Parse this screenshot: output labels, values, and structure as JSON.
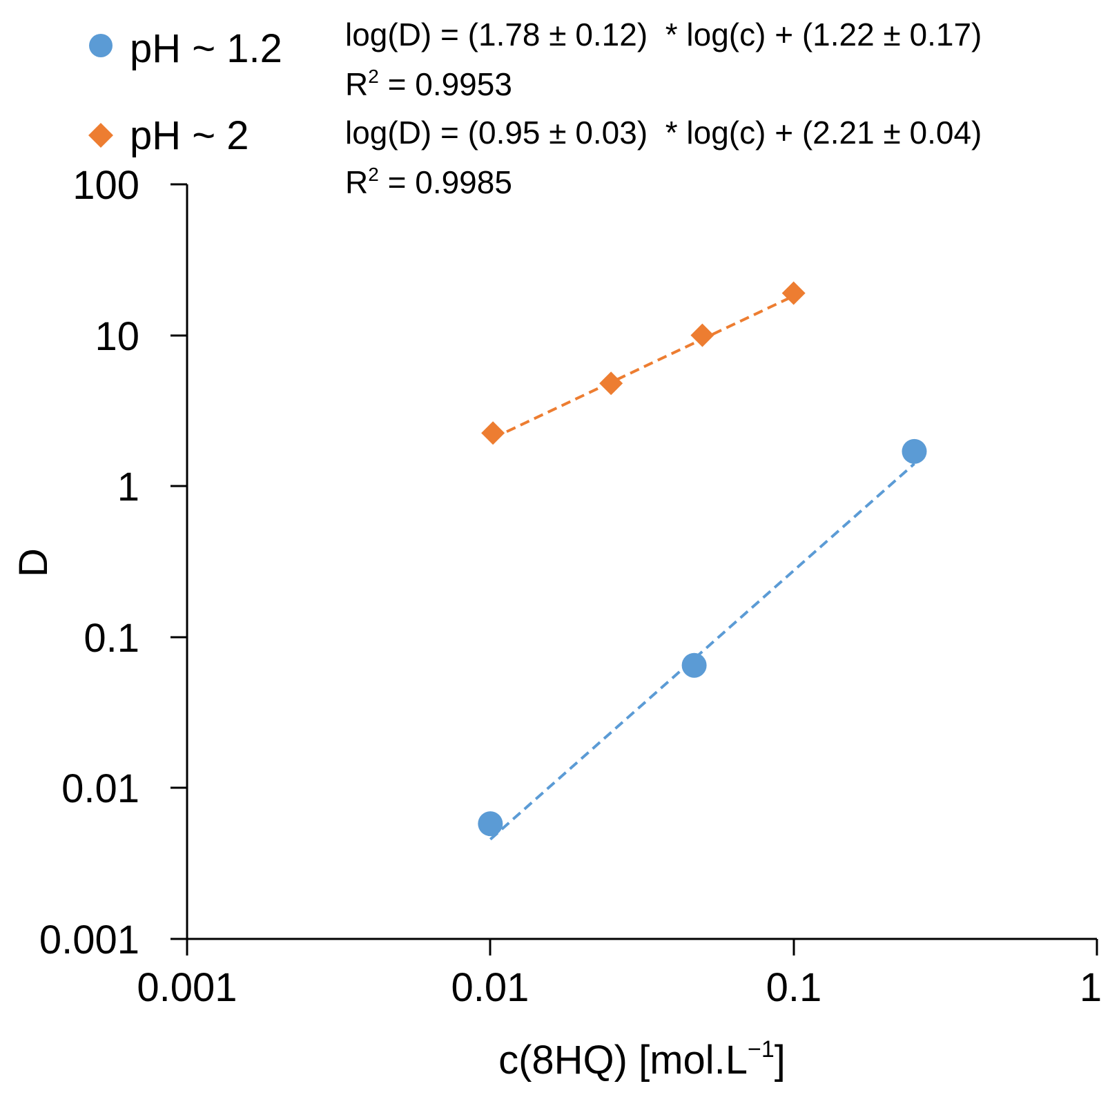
{
  "chart_data": {
    "type": "scatter",
    "x_scale": "log",
    "y_scale": "log",
    "xlim": [
      0.001,
      1
    ],
    "ylim": [
      0.001,
      100
    ],
    "x_ticks": [
      "0.001",
      "0.01",
      "0.1",
      "1"
    ],
    "y_ticks": [
      "100",
      "10",
      "1",
      "0.1",
      "0.01",
      "0.001"
    ],
    "x_tick_values": [
      0.001,
      0.01,
      0.1,
      1
    ],
    "y_tick_values": [
      100,
      10,
      1,
      0.1,
      0.01,
      0.001
    ],
    "xlabel": "c(8HQ) [mol.L",
    "xlabel_sup": "−1",
    "xlabel_end": "]",
    "ylabel": "D",
    "grid": false,
    "legend_position": "top-left",
    "series": [
      {
        "name": "pH ~ 1.2",
        "marker": "circle",
        "color": "#5b9bd5",
        "points": [
          {
            "x": 0.01,
            "y": 0.0058
          },
          {
            "x": 0.047,
            "y": 0.065
          },
          {
            "x": 0.25,
            "y": 1.7
          }
        ],
        "fit": {
          "type": "power",
          "slope": 1.78,
          "intercept": 1.22,
          "x_range": [
            0.01,
            0.25
          ],
          "equation": "log(D) = (1.78 ± 0.12)  * log(c) + (1.22 ± 0.17)",
          "r2_prefix": "R",
          "r2_sup": "2",
          "r2_value": " = 0.9953"
        }
      },
      {
        "name": "pH ~ 2",
        "marker": "diamond",
        "color": "#ed7d31",
        "points": [
          {
            "x": 0.0102,
            "y": 2.25
          },
          {
            "x": 0.025,
            "y": 4.8
          },
          {
            "x": 0.05,
            "y": 10.0
          },
          {
            "x": 0.1,
            "y": 19.0
          }
        ],
        "fit": {
          "type": "power",
          "slope": 0.95,
          "intercept": 2.21,
          "x_range": [
            0.0102,
            0.1
          ],
          "equation": "log(D) = (0.95 ± 0.03)  * log(c) + (2.21 ± 0.04)",
          "r2_prefix": "R",
          "r2_sup": "2",
          "r2_value": " = 0.9985"
        }
      }
    ]
  }
}
